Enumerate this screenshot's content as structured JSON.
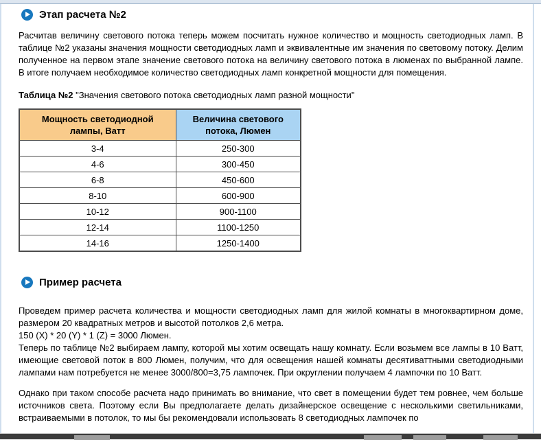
{
  "colors": {
    "accent_play_icon": "#1878be",
    "table_header_watt_bg": "#f9cb8b",
    "table_header_lumen_bg": "#aad4f3",
    "top_band": "#dde6f0",
    "table_border": "#4c4c4c"
  },
  "section1": {
    "heading": "Этап расчета №2",
    "paragraph": "Расчитав величину светового потока теперь можем посчитать нужное количество и мощность светодиодных ламп. В таблице №2 указаны значения мощности светодиодных ламп и эквивалентные им значения по световому потоку. Делим полученное на первом этапе значение светового потока на величину светового потока в люменах по выбранной лампе. В итоге получаем необходимое количество светодиодных ламп конкретной мощности для помещения."
  },
  "table": {
    "caption_label": "Таблица №2",
    "caption_text": " \"Значения светового потока светодиодных ламп разной мощности\"",
    "headers": [
      "Мощность светодиодной лампы, Ватт",
      "Величина светового потока, Люмен"
    ],
    "rows": [
      [
        "3-4",
        "250-300"
      ],
      [
        "4-6",
        "300-450"
      ],
      [
        "6-8",
        "450-600"
      ],
      [
        "8-10",
        "600-900"
      ],
      [
        "10-12",
        "900-1100"
      ],
      [
        "12-14",
        "1100-1250"
      ],
      [
        "14-16",
        "1250-1400"
      ]
    ]
  },
  "section2": {
    "heading": "Пример расчета",
    "intro_line": "Проведем пример расчета количества и мощности светодиодных ламп для жилой комнаты в многоквартирном доме, размером 20 квадратных метров и высотой потолков 2,6 метра.",
    "formula_line": "150 (X) * 20 (Y) * 1 (Z) = 3000 Люмен.",
    "explanation_line": "Теперь по таблице №2 выбираем лампу, которой мы хотим освещать нашу комнату. Если возьмем все лампы в 10 Ватт, имеющие световой поток в 800 Люмен, получим, что для освещения нашей комнаты десятиваттными светодиодными лампами нам потребуется не менее 3000/800=3,75 лампочек. При округлении получаем 4 лампочки по 10 Ватт.",
    "closing_paragraph": "Однако при таком способе расчета надо принимать во внимание, что свет в помещении будет тем ровнее, чем больше источников света. Поэтому если Вы предполагаете делать дизайнерское освещение с несколькими светильниками, встраиваемыми в потолок, то мы бы рекомендовали использовать 8 светодиодных лампочек по"
  }
}
